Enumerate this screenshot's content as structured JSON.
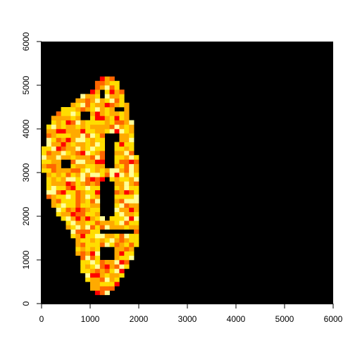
{
  "chart_data": {
    "type": "heatmap",
    "title": "",
    "xlabel": "",
    "ylabel": "",
    "xlim": [
      0,
      6000
    ],
    "ylim": [
      0,
      6000
    ],
    "x_ticks": [
      0,
      1000,
      2000,
      3000,
      4000,
      5000,
      6000
    ],
    "y_ticks": [
      0,
      1000,
      2000,
      3000,
      4000,
      5000,
      6000
    ],
    "x_tick_labels": [
      "0",
      "1000",
      "2000",
      "3000",
      "4000",
      "5000",
      "6000"
    ],
    "y_tick_labels": [
      "0",
      "1000",
      "2000",
      "3000",
      "4000",
      "5000",
      "6000"
    ],
    "background_color": "#000000",
    "palette": [
      "#ff0000",
      "#ff6600",
      "#ffaa00",
      "#ffdd00",
      "#ffff99"
    ],
    "cell_size": 100,
    "tissue_outline": [
      [
        1150,
        150
      ],
      [
        1400,
        200
      ],
      [
        1600,
        500
      ],
      [
        1750,
        800
      ],
      [
        1900,
        1100
      ],
      [
        2000,
        1500
      ],
      [
        2050,
        2000
      ],
      [
        2050,
        2600
      ],
      [
        2000,
        3200
      ],
      [
        1900,
        3700
      ],
      [
        1850,
        4200
      ],
      [
        1750,
        4650
      ],
      [
        1600,
        5050
      ],
      [
        1450,
        5250
      ],
      [
        1250,
        5200
      ],
      [
        1050,
        4900
      ],
      [
        700,
        4650
      ],
      [
        350,
        4400
      ],
      [
        150,
        4100
      ],
      [
        50,
        3600
      ],
      [
        50,
        3000
      ],
      [
        100,
        2500
      ],
      [
        300,
        2100
      ],
      [
        500,
        1800
      ],
      [
        700,
        1400
      ],
      [
        800,
        900
      ],
      [
        900,
        600
      ],
      [
        1050,
        300
      ]
    ],
    "holes": [
      {
        "cx": 1350,
        "cy": 2400,
        "rx": 180,
        "ry": 450
      },
      {
        "cx": 1350,
        "cy": 1150,
        "rx": 140,
        "ry": 160
      },
      {
        "cx": 1550,
        "cy": 1650,
        "rx": 350,
        "ry": 60
      },
      {
        "cx": 500,
        "cy": 3200,
        "rx": 120,
        "ry": 110
      },
      {
        "cx": 1400,
        "cy": 3500,
        "rx": 80,
        "ry": 450
      },
      {
        "cx": 1500,
        "cy": 3800,
        "rx": 120,
        "ry": 120
      },
      {
        "cx": 1600,
        "cy": 4450,
        "rx": 100,
        "ry": 100
      },
      {
        "cx": 900,
        "cy": 4300,
        "rx": 80,
        "ry": 80
      },
      {
        "cx": 1250,
        "cy": 4800,
        "rx": 80,
        "ry": 60
      }
    ],
    "low_value_spots": [
      {
        "cx": 1200,
        "cy": 300,
        "r": 150
      },
      {
        "cx": 800,
        "cy": 2100,
        "r": 130
      },
      {
        "cx": 600,
        "cy": 2700,
        "r": 110
      },
      {
        "cx": 1800,
        "cy": 2200,
        "r": 120
      },
      {
        "cx": 500,
        "cy": 3700,
        "r": 120
      },
      {
        "cx": 800,
        "cy": 1100,
        "r": 100
      }
    ]
  }
}
